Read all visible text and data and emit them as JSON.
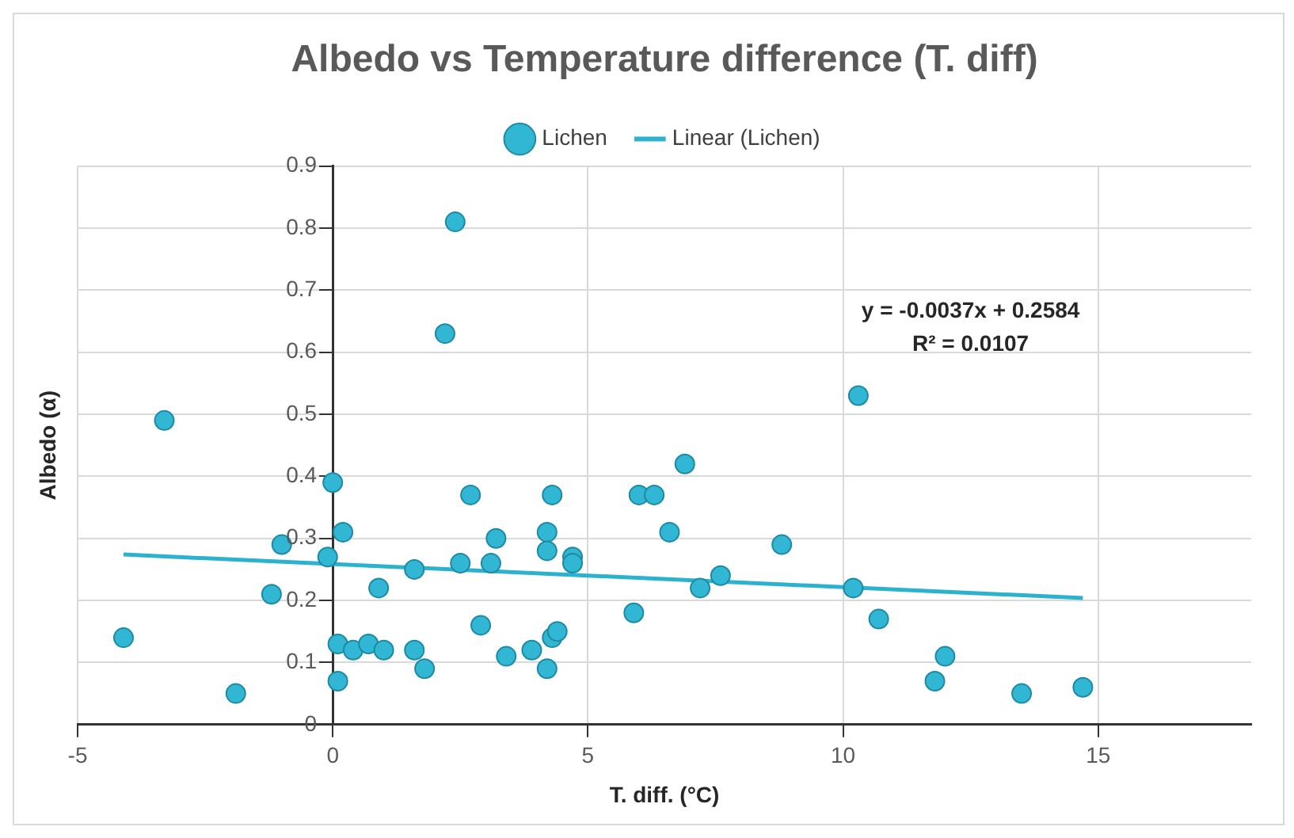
{
  "chart_data": {
    "type": "scatter",
    "title": "Albedo vs Temperature difference (T. diff)",
    "xlabel": "T. diff. (°C)",
    "ylabel": "Albedo (α)",
    "xlim": [
      -5,
      18
    ],
    "xticks": [
      -5,
      0,
      5,
      10,
      15
    ],
    "ylim": [
      0,
      0.9
    ],
    "yticks": [
      0,
      0.1,
      0.2,
      0.3,
      0.4,
      0.5,
      0.6,
      0.7,
      0.8,
      0.9
    ],
    "grid": true,
    "legend": "top",
    "marker": "circle",
    "annotations": [
      "y = -0.0037x + 0.2584",
      "R² = 0.0107"
    ],
    "series": [
      {
        "name": "Lichen",
        "type": "scatter",
        "color": "#31b6d3",
        "x": [
          -4.1,
          -3.3,
          -1.9,
          -1.2,
          -1.0,
          0,
          -0.1,
          0.2,
          0.1,
          0.1,
          0.4,
          0.7,
          1.0,
          0.9,
          1.6,
          1.6,
          1.8,
          2.2,
          2.4,
          2.5,
          2.7,
          2.9,
          3.1,
          3.2,
          3.4,
          3.9,
          4.2,
          4.2,
          4.2,
          4.3,
          4.3,
          4.4,
          4.7,
          4.7,
          5.9,
          6.0,
          6.3,
          6.6,
          6.9,
          7.2,
          7.6,
          8.8,
          10.3,
          10.2,
          10.7,
          12.0,
          11.8,
          13.5,
          14.7
        ],
        "values": [
          0.14,
          0.49,
          0.05,
          0.21,
          0.29,
          0.39,
          0.27,
          0.31,
          0.13,
          0.07,
          0.12,
          0.13,
          0.12,
          0.22,
          0.25,
          0.12,
          0.09,
          0.63,
          0.81,
          0.26,
          0.37,
          0.16,
          0.26,
          0.3,
          0.11,
          0.12,
          0.09,
          0.31,
          0.28,
          0.37,
          0.14,
          0.15,
          0.27,
          0.26,
          0.18,
          0.37,
          0.37,
          0.31,
          0.42,
          0.22,
          0.24,
          0.29,
          0.53,
          0.22,
          0.17,
          0.11,
          0.07,
          0.05,
          0.06
        ]
      },
      {
        "name": "Linear (Lichen)",
        "type": "line",
        "color": "#2cb1cf",
        "marker": "none",
        "x": [
          -4.1,
          14.7
        ],
        "values": [
          0.274,
          0.204
        ]
      }
    ]
  }
}
